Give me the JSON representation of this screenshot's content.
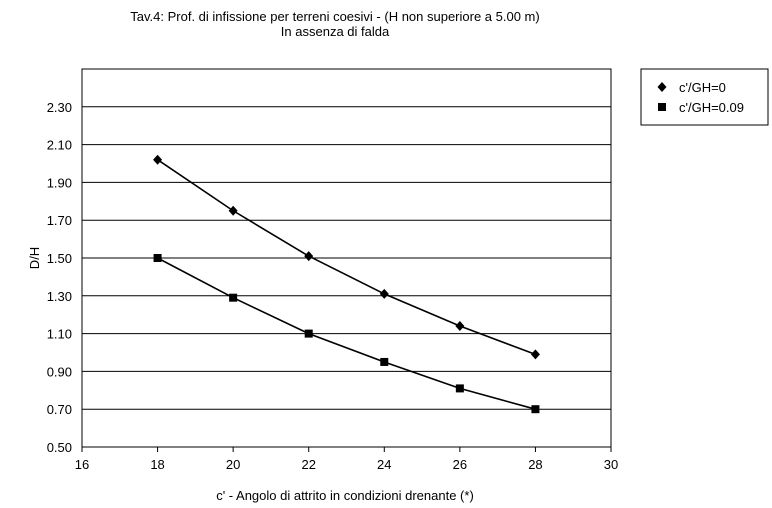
{
  "chart_data": {
    "type": "line",
    "title": "Tav.4: Prof. di infissione per terreni coesivi - (H non superiore a 5.00 m)",
    "subtitle": "In assenza di falda",
    "xlabel": "c' - Angolo di attrito in condizioni drenante (*)",
    "ylabel": "D/H",
    "xlim": [
      16,
      30
    ],
    "ylim": [
      0.5,
      2.5
    ],
    "xticks": [
      "16",
      "18",
      "20",
      "22",
      "24",
      "26",
      "28",
      "30"
    ],
    "yticks": [
      "0.50",
      "0.70",
      "0.90",
      "1.10",
      "1.30",
      "1.50",
      "1.70",
      "1.90",
      "2.10",
      "2.30"
    ],
    "grid": "horizontal",
    "legend": "right",
    "x": [
      18,
      20,
      22,
      24,
      26,
      28
    ],
    "series": [
      {
        "name": "c'/GH=0",
        "marker": "diamond",
        "color": "#000000",
        "values": [
          2.02,
          1.75,
          1.51,
          1.31,
          1.14,
          0.99
        ]
      },
      {
        "name": "c'/GH=0.09",
        "marker": "square",
        "color": "#000000",
        "values": [
          1.5,
          1.29,
          1.1,
          0.95,
          0.81,
          0.7
        ]
      }
    ]
  }
}
